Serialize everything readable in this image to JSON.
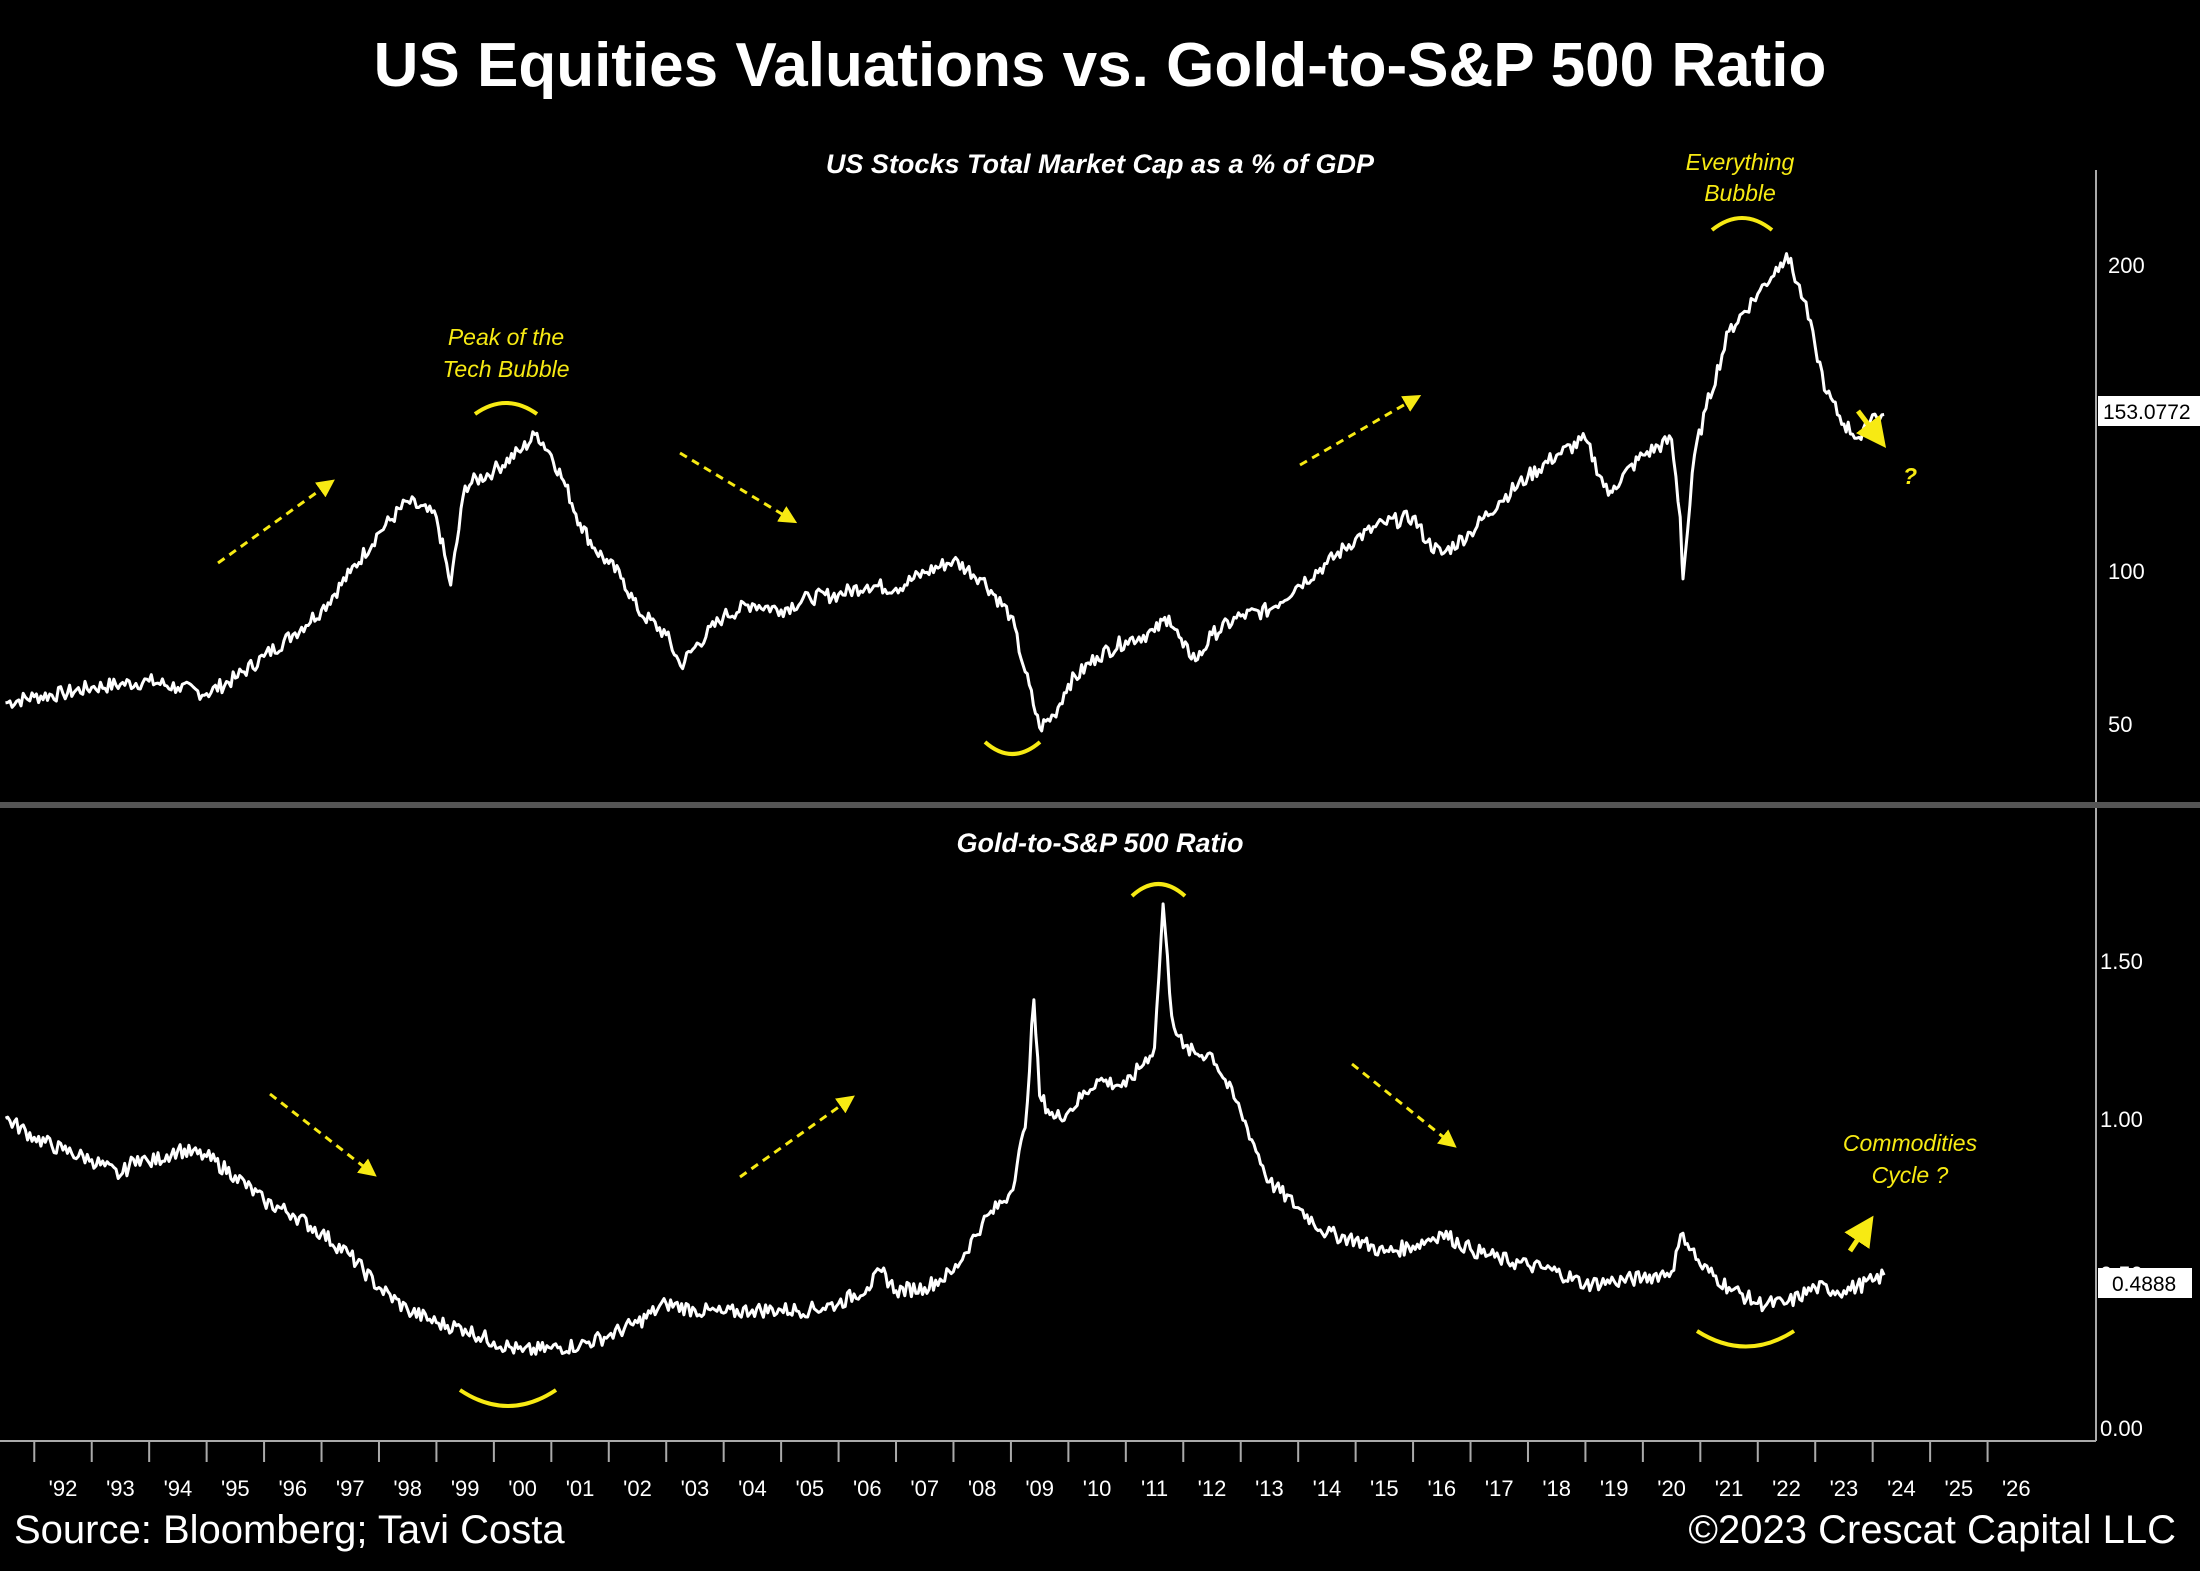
{
  "title": "US Equities Valuations vs. Gold-to-S&P 500 Ratio",
  "footer": {
    "source": "Source: Bloomberg; Tavi Costa",
    "copyright": "©2023 Crescat Capital LLC"
  },
  "colors": {
    "background": "#000000",
    "line": "#ffffff",
    "annotation": "#f7ea13"
  },
  "x_axis_labels": [
    "'92",
    "'93",
    "'94",
    "'95",
    "'96",
    "'97",
    "'98",
    "'99",
    "'00",
    "'01",
    "'02",
    "'03",
    "'04",
    "'05",
    "'06",
    "'07",
    "'08",
    "'09",
    "'10",
    "'11",
    "'12",
    "'13",
    "'14",
    "'15",
    "'16",
    "'17",
    "'18",
    "'19",
    "'20",
    "'21",
    "'22",
    "'23",
    "'24",
    "'25",
    "'26"
  ],
  "chart_data": [
    {
      "type": "line",
      "title": "US Stocks Total Market Cap as a % of GDP",
      "ylim": [
        28,
        232
      ],
      "y_ticks": [
        "50",
        "100",
        "200"
      ],
      "last_value_label": "153.0772",
      "x": [
        1991.0,
        1991.5,
        1992.0,
        1992.5,
        1993.0,
        1993.5,
        1994.0,
        1994.5,
        1995.0,
        1995.5,
        1996.0,
        1996.5,
        1997.0,
        1997.5,
        1998.0,
        1998.5,
        1998.75,
        1999.0,
        1999.5,
        2000.0,
        2000.25,
        2000.5,
        2000.75,
        2001.0,
        2001.25,
        2001.5,
        2001.75,
        2002.0,
        2002.5,
        2002.75,
        2003.0,
        2003.5,
        2004.0,
        2004.5,
        2005.0,
        2005.5,
        2006.0,
        2006.5,
        2007.0,
        2007.5,
        2008.0,
        2008.5,
        2008.75,
        2009.0,
        2009.25,
        2009.5,
        2010.0,
        2010.5,
        2011.0,
        2011.25,
        2011.5,
        2011.75,
        2012.0,
        2012.5,
        2013.0,
        2013.5,
        2014.0,
        2014.5,
        2015.0,
        2015.5,
        2015.75,
        2016.0,
        2016.5,
        2017.0,
        2017.5,
        2018.0,
        2018.5,
        2018.9,
        2019.0,
        2019.5,
        2020.0,
        2020.15,
        2020.2,
        2020.4,
        2020.6,
        2021.0,
        2021.5,
        2021.9,
        2022.0,
        2022.3,
        2022.5,
        2022.7,
        2023.0,
        2023.3,
        2023.5,
        2023.7
      ],
      "y": [
        60,
        62,
        63,
        65,
        66,
        67,
        65,
        63,
        68,
        75,
        82,
        90,
        102,
        115,
        125,
        120,
        98,
        130,
        135,
        142,
        147,
        140,
        130,
        118,
        110,
        105,
        100,
        90,
        82,
        72,
        78,
        88,
        92,
        90,
        94,
        95,
        98,
        97,
        102,
        106,
        100,
        88,
        70,
        52,
        56,
        66,
        75,
        80,
        83,
        88,
        78,
        74,
        82,
        88,
        90,
        98,
        105,
        113,
        118,
        120,
        112,
        108,
        115,
        125,
        133,
        140,
        145,
        127,
        130,
        140,
        145,
        120,
        100,
        140,
        155,
        180,
        192,
        202,
        205,
        190,
        175,
        160,
        150,
        145,
        153,
        153.0772
      ]
    },
    {
      "type": "line",
      "title": "Gold-to-S&P 500 Ratio",
      "ylim": [
        -0.03,
        1.95
      ],
      "y_ticks": [
        "0.00",
        "0.50",
        "1.00",
        "1.50"
      ],
      "last_value_label": "0.4888",
      "x": [
        1991.0,
        1991.5,
        1992.0,
        1992.5,
        1993.0,
        1993.3,
        1993.5,
        1994.0,
        1994.5,
        1995.0,
        1995.5,
        1996.0,
        1996.5,
        1997.0,
        1997.5,
        1998.0,
        1998.5,
        1999.0,
        1999.5,
        2000.0,
        2000.5,
        2001.0,
        2001.5,
        2002.0,
        2002.5,
        2003.0,
        2003.5,
        2004.0,
        2004.5,
        2005.0,
        2005.5,
        2006.0,
        2006.25,
        2006.5,
        2007.0,
        2007.5,
        2008.0,
        2008.5,
        2008.75,
        2008.9,
        2009.0,
        2009.25,
        2009.5,
        2010.0,
        2010.5,
        2011.0,
        2011.15,
        2011.3,
        2011.5,
        2011.75,
        2012.0,
        2012.5,
        2013.0,
        2013.5,
        2014.0,
        2014.5,
        2015.0,
        2015.5,
        2016.0,
        2016.5,
        2017.0,
        2017.5,
        2018.0,
        2018.5,
        2019.0,
        2019.5,
        2020.0,
        2020.2,
        2020.5,
        2021.0,
        2021.5,
        2022.0,
        2022.5,
        2023.0,
        2023.5,
        2023.7
      ],
      "y": [
        0.98,
        0.92,
        0.88,
        0.85,
        0.8,
        0.86,
        0.84,
        0.88,
        0.86,
        0.8,
        0.72,
        0.68,
        0.62,
        0.55,
        0.45,
        0.38,
        0.34,
        0.32,
        0.28,
        0.25,
        0.26,
        0.27,
        0.3,
        0.34,
        0.4,
        0.38,
        0.37,
        0.38,
        0.38,
        0.38,
        0.4,
        0.45,
        0.5,
        0.44,
        0.45,
        0.5,
        0.65,
        0.75,
        0.95,
        1.35,
        1.05,
        0.98,
        1.0,
        1.1,
        1.08,
        1.2,
        1.65,
        1.3,
        1.2,
        1.18,
        1.18,
        1.0,
        0.78,
        0.7,
        0.62,
        0.6,
        0.56,
        0.58,
        0.62,
        0.57,
        0.54,
        0.52,
        0.5,
        0.46,
        0.47,
        0.48,
        0.5,
        0.62,
        0.52,
        0.45,
        0.4,
        0.4,
        0.45,
        0.44,
        0.47,
        0.4888
      ]
    }
  ],
  "annotations": {
    "top_peak_tech": [
      "Peak of the",
      "Tech Bubble"
    ],
    "top_everything": [
      "Everything",
      "Bubble"
    ],
    "top_question": "?",
    "bottom_commodities": [
      "Commodities",
      "Cycle ?"
    ]
  }
}
